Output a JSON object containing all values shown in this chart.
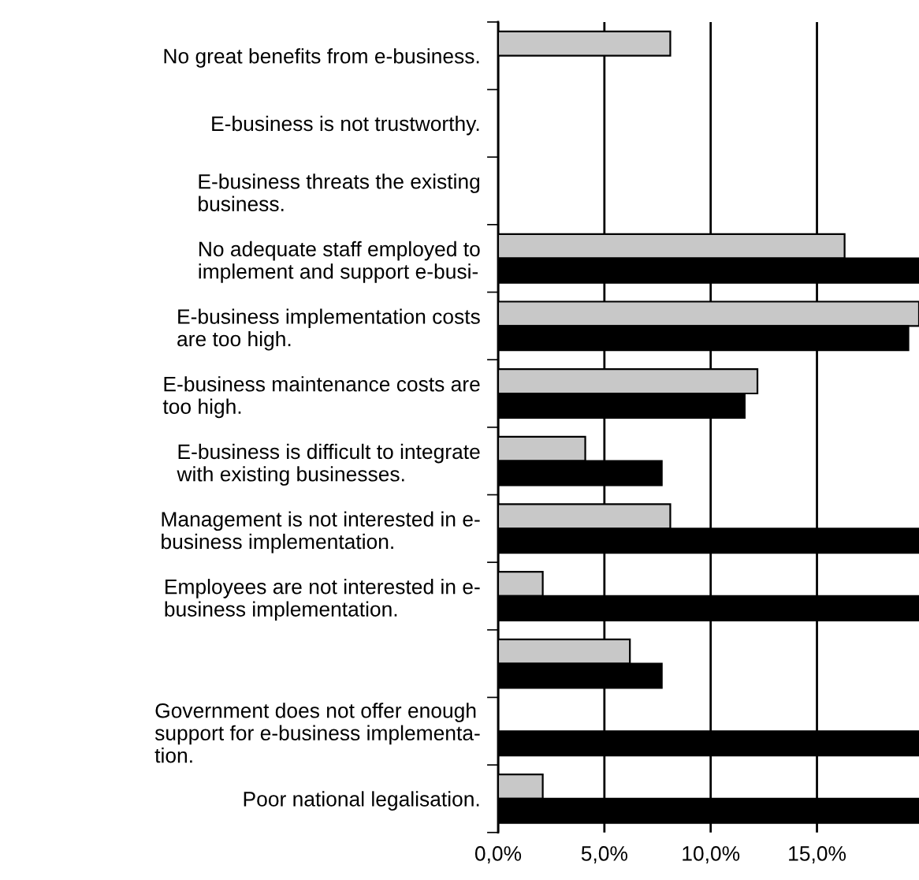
{
  "chart_data": {
    "type": "bar",
    "orientation": "horizontal",
    "categories": [
      "No great benefits from e-business.",
      "E-business is not trustworthy.",
      "E-business threats the existing\nbusiness.",
      "No adequate staff employed to\nimplement and support e-busi-",
      "E-business implementation costs\nare too high.",
      "E-business maintenance costs are\ntoo high.",
      "E-business is difficult to integrate\nwith existing businesses.",
      "Management is not interested in e-\nbusiness implementation.",
      "Employees are not interested in e-\nbusiness implementation.",
      null,
      "Government does not offer enough\nsupport for e-business implementa-\ntion.",
      "Poor national legalisation."
    ],
    "series": [
      {
        "color": "#c8c8c8",
        "values": [
          8.1,
          null,
          null,
          16.3,
          19.8,
          12.2,
          4.1,
          8.1,
          2.1,
          6.2,
          null,
          2.1
        ]
      },
      {
        "color": "#000000",
        "values": [
          null,
          null,
          null,
          19.8,
          19.3,
          11.6,
          7.7,
          19.8,
          19.8,
          7.7,
          19.8,
          19.8
        ]
      }
    ],
    "xlim": [
      0,
      19.8
    ],
    "xticks": [
      {
        "value": 0,
        "label": "0,0%"
      },
      {
        "value": 5,
        "label": "5,0%"
      },
      {
        "value": 10,
        "label": "10,0%"
      },
      {
        "value": 15,
        "label": "15,0%"
      }
    ],
    "grid": "x"
  }
}
